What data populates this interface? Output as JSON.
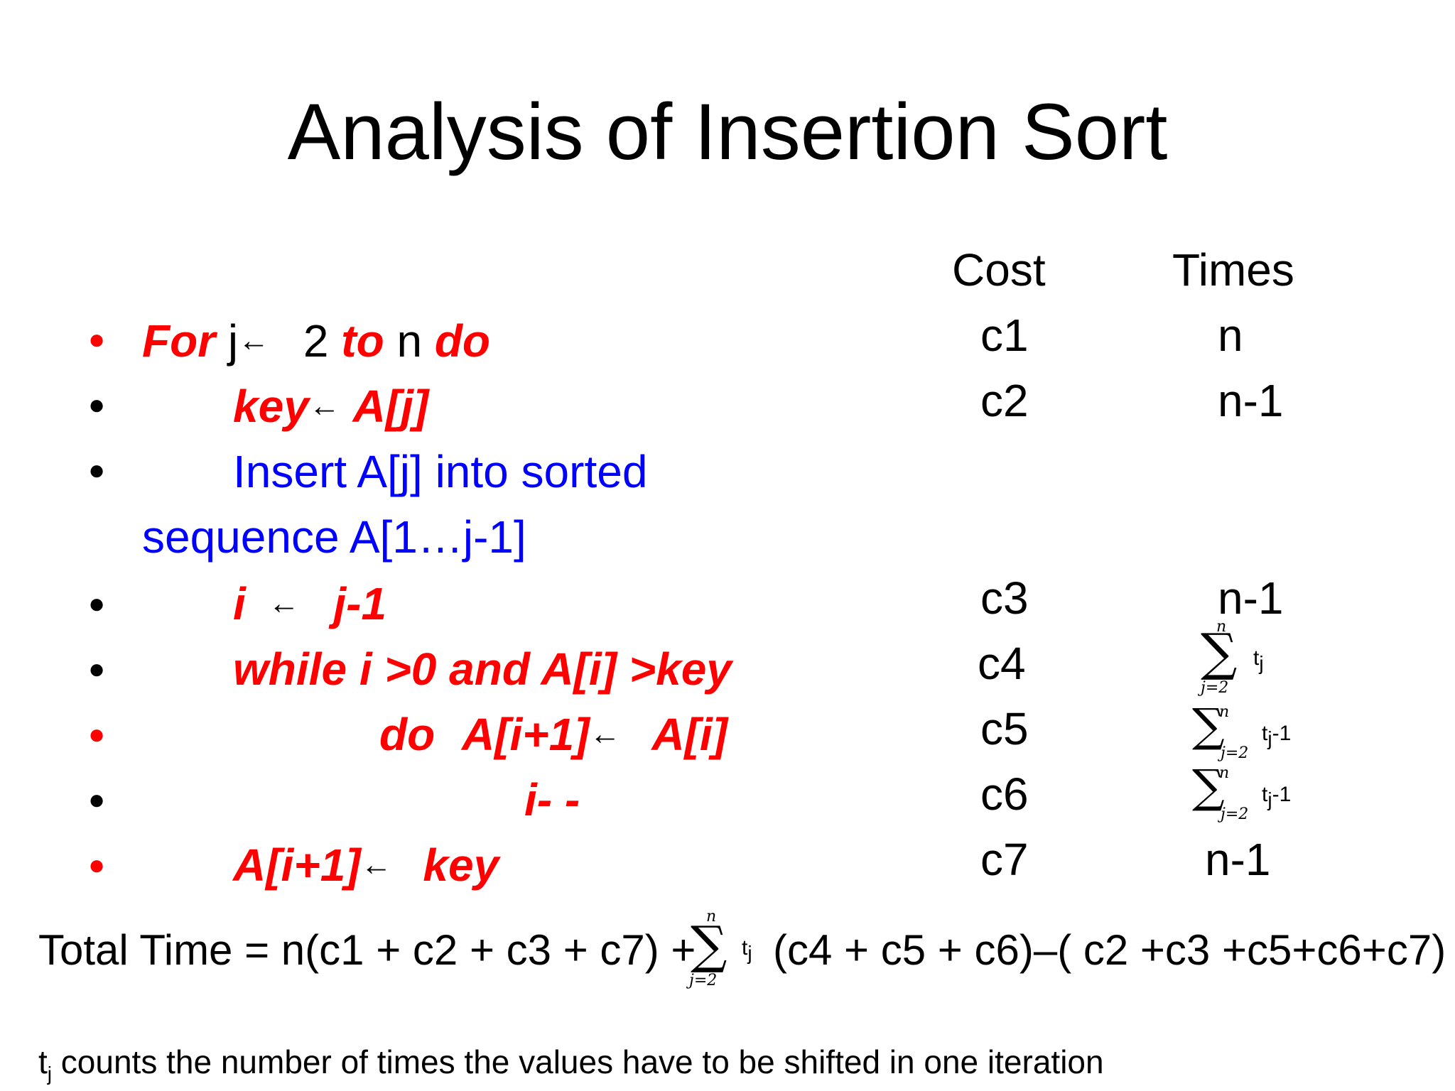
{
  "title": "Analysis of Insertion Sort",
  "headers": {
    "cost": "Cost",
    "times": "Times"
  },
  "lines": {
    "l1": {
      "for": "For",
      "j": "j",
      "arrow": "←",
      "two": "2",
      "to": "to",
      "n": "n",
      "do": "do"
    },
    "l2": {
      "key": "key",
      "arrow": "←",
      "aj": "A[j]"
    },
    "l3": {
      "text1": "Insert A[j] into sorted",
      "text2": "sequence A[1…j-1]"
    },
    "l4": {
      "i": "i",
      "arrow": "←",
      "expr": "j-1"
    },
    "l5": {
      "text": "while i >0 and A[i] >key"
    },
    "l6": {
      "do": "do",
      "lhs": "A[i+1]",
      "arrow": "←",
      "rhs": "A[i]"
    },
    "l7": {
      "text": "i- -"
    },
    "l8": {
      "lhs": "A[i+1]",
      "arrow": "←",
      "rhs": "key"
    }
  },
  "costs": [
    "c1",
    "c2",
    "c3",
    "c4",
    "c5",
    "c6",
    "c7"
  ],
  "times": [
    "n",
    "n-1",
    "n-1",
    "n-1"
  ],
  "sum": {
    "symbol": "∑",
    "upper": "n",
    "lower": "j=2",
    "t": "t",
    "sub": "j",
    "minus_one": "-1"
  },
  "total": {
    "left": "Total Time = n(c1 + c2 + c3 + c7) +",
    "right": "(c4 + c5 + c6)–( c2 +c3 +c5+c6+c7)"
  },
  "footnote": {
    "t": "t",
    "sub": "j",
    "text": "counts the number of times the values have to be shifted in one iteration"
  },
  "colors": {
    "keyword": "#ff0000",
    "comment": "#0000ff",
    "text": "#000000"
  }
}
